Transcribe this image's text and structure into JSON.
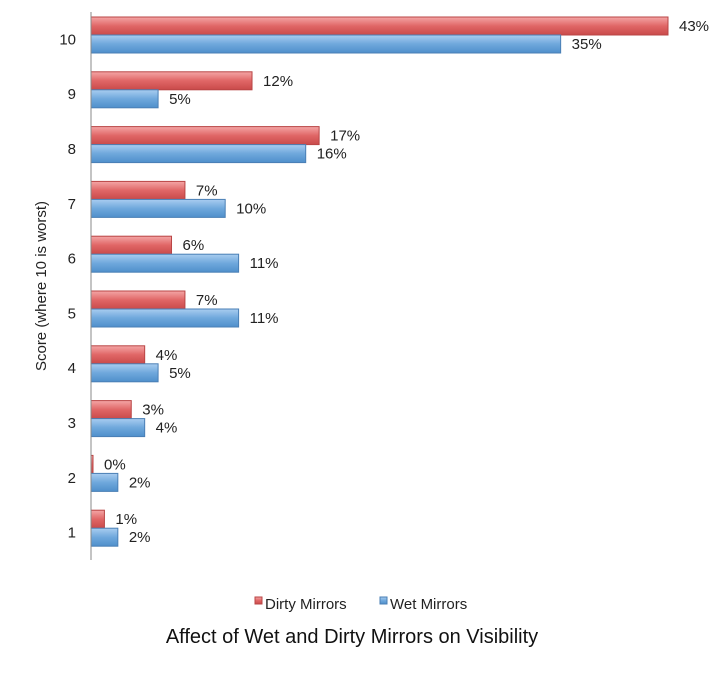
{
  "chart_data": {
    "type": "bar",
    "orientation": "horizontal",
    "title": "Affect of Wet and Dirty Mirrors on Visibility",
    "xlabel": "",
    "ylabel": "Score (where 10 is worst)",
    "categories": [
      "1",
      "2",
      "3",
      "4",
      "5",
      "6",
      "7",
      "8",
      "9",
      "10"
    ],
    "series": [
      {
        "name": "Dirty Mirrors",
        "color": "#e06666",
        "values": [
          1,
          0,
          3,
          4,
          7,
          6,
          7,
          17,
          12,
          43
        ],
        "labels": [
          "1%",
          "0%",
          "3%",
          "4%",
          "7%",
          "6%",
          "7%",
          "17%",
          "12%",
          "43%"
        ]
      },
      {
        "name": "Wet Mirrors",
        "color": "#6fa8dc",
        "values": [
          2,
          2,
          4,
          5,
          11,
          11,
          10,
          16,
          5,
          35
        ],
        "labels": [
          "2%",
          "2%",
          "4%",
          "5%",
          "11%",
          "11%",
          "10%",
          "16%",
          "5%",
          "35%"
        ]
      }
    ],
    "xlim": [
      0,
      43
    ],
    "grid": false,
    "legend": "bottom"
  }
}
